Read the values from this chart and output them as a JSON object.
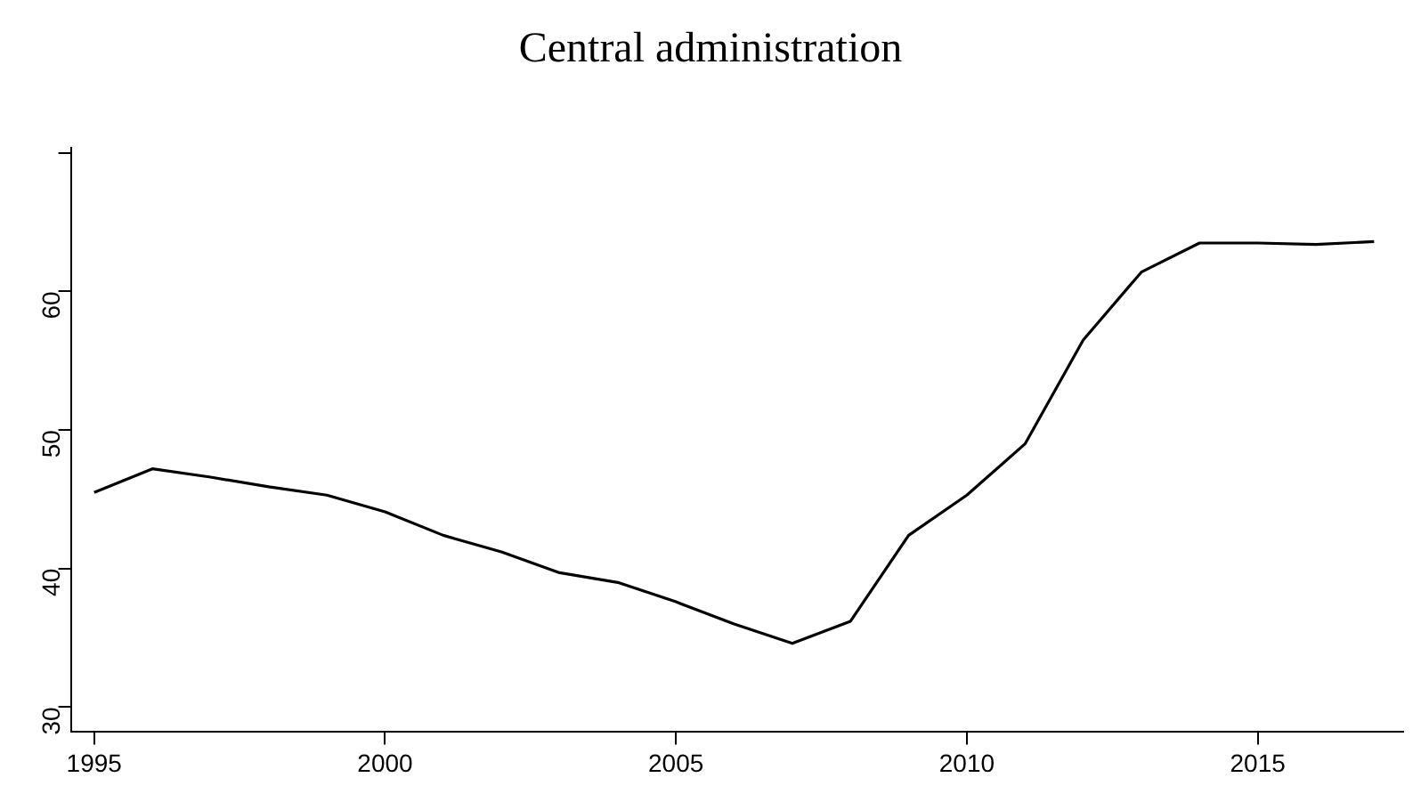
{
  "chart_data": {
    "type": "line",
    "title": "Central administration",
    "x": [
      1995,
      1996,
      1997,
      1998,
      1999,
      2000,
      2001,
      2002,
      2003,
      2004,
      2005,
      2006,
      2007,
      2008,
      2009,
      2010,
      2011,
      2012,
      2013,
      2014,
      2015,
      2016,
      2017
    ],
    "series": [
      {
        "color": "#000000",
        "values": [
          45.5,
          47.2,
          46.6,
          45.9,
          45.3,
          44.1,
          42.4,
          41.2,
          39.7,
          39.0,
          37.6,
          36.0,
          34.6,
          36.2,
          42.4,
          45.3,
          49.0,
          56.5,
          61.4,
          63.5,
          63.5,
          63.4,
          63.6
        ]
      }
    ],
    "xlim": [
      1994.6,
      2017.5
    ],
    "xticks": [
      1995,
      2000,
      2005,
      2010,
      2015
    ],
    "ylim": [
      28.2,
      70.4
    ],
    "yticks": [
      30,
      40,
      50,
      60,
      {
        "value": 70,
        "label": null
      }
    ],
    "grid": false,
    "legend": false,
    "marker": "none",
    "line_style": "solid"
  }
}
